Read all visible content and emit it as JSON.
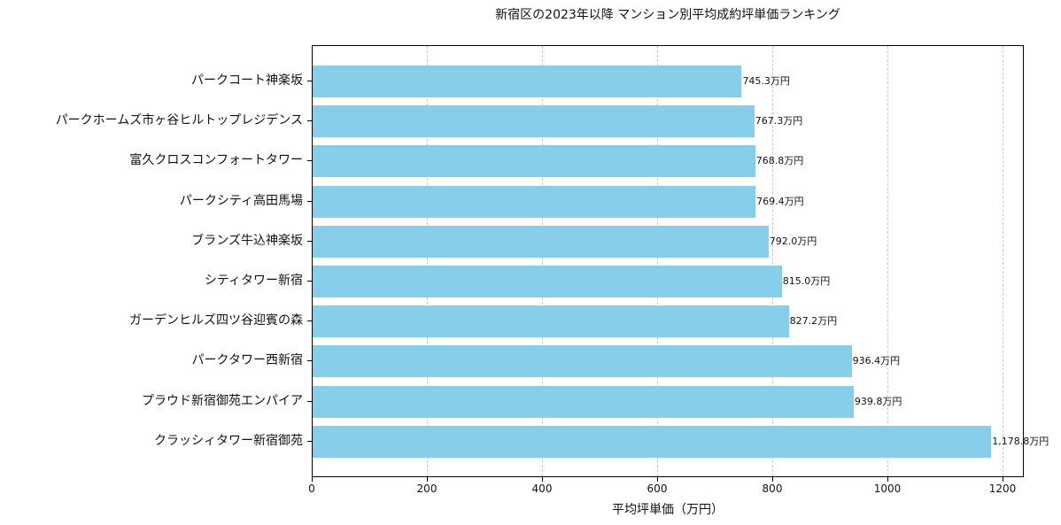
{
  "chart_data": {
    "type": "bar",
    "orientation": "horizontal",
    "title": "新宿区の2023年以降 マンション別平均成約坪単価ランキング",
    "xlabel": "平均坪単価（万円）",
    "ylabel": "",
    "xlim": [
      0,
      1237
    ],
    "xticks": [
      0,
      200,
      400,
      600,
      800,
      1000,
      1200
    ],
    "xtick_labels": [
      "0",
      "200",
      "400",
      "600",
      "800",
      "1000",
      "1200"
    ],
    "grid": {
      "x": true,
      "y": false,
      "style": "dashed"
    },
    "bar_color": "#87ceeb",
    "categories": [
      "パークコート神楽坂",
      "パークホームズ市ヶ谷ヒルトップレジデンス",
      "富久クロスコンフォートタワー",
      "パークシティ高田馬場",
      "ブランズ牛込神楽坂",
      "シティタワー新宿",
      "ガーデンヒルズ四ツ谷迎賓の森",
      "パークタワー西新宿",
      "プラウド新宿御苑エンパイア",
      "クラッシィタワー新宿御苑"
    ],
    "values": [
      745.3,
      767.3,
      768.8,
      769.4,
      792.0,
      815.0,
      827.2,
      936.4,
      939.8,
      1178.8
    ],
    "value_labels": [
      "745.3万円",
      "767.3万円",
      "768.8万円",
      "769.4万円",
      "792.0万円",
      "815.0万円",
      "827.2万円",
      "936.4万円",
      "939.8万円",
      "1,178.8万円"
    ]
  }
}
